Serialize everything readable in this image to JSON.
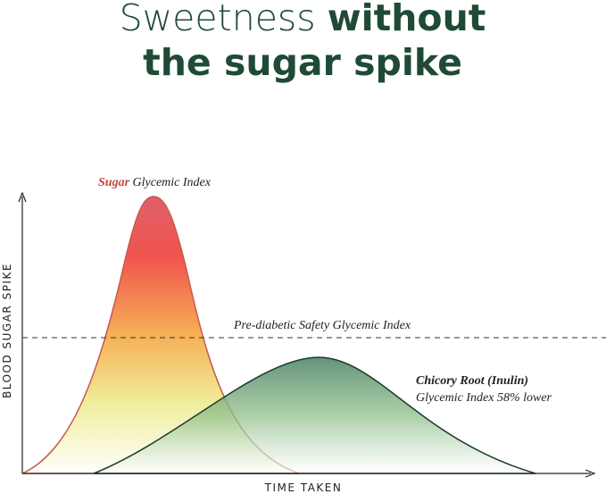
{
  "title": {
    "light": "Sweetness",
    "bold_1": "without",
    "bold_2": "the sugar spike"
  },
  "sugar_label": {
    "highlight": "Sugar",
    "rest": "Glycemic Index"
  },
  "threshold_label": "Pre-diabetic Safety Glycemic Index",
  "chicory_label": {
    "line_1": "Chicory Root (Inulin)",
    "line_2": "Glycemic Index 58% lower"
  },
  "y_axis_label": "BLOOD SUGAR SPIKE",
  "x_axis_label": "TIME TAKEN"
}
